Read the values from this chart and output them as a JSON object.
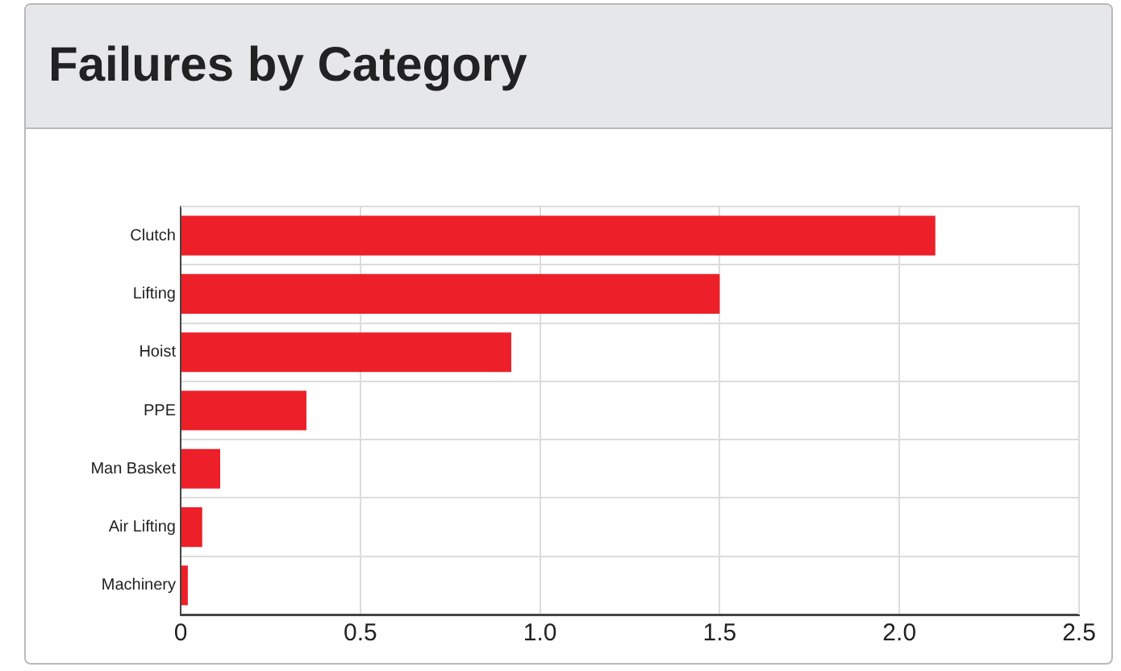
{
  "chart_data": {
    "type": "bar",
    "orientation": "horizontal",
    "title": "Failures by Category",
    "categories": [
      "Clutch",
      "Lifting",
      "Hoist",
      "PPE",
      "Man Basket",
      "Air Lifting",
      "Machinery"
    ],
    "values": [
      2.1,
      1.5,
      0.92,
      0.35,
      0.11,
      0.06,
      0.02
    ],
    "color": "#ed1f28",
    "xlim": [
      0,
      2.5
    ],
    "xticks": [
      {
        "value": 0,
        "label": "0"
      },
      0.5,
      {
        "value": 1,
        "label": "1.0"
      },
      1.5,
      {
        "value": 2,
        "label": "2.0"
      },
      2.5
    ],
    "grid": true,
    "legend": false
  }
}
